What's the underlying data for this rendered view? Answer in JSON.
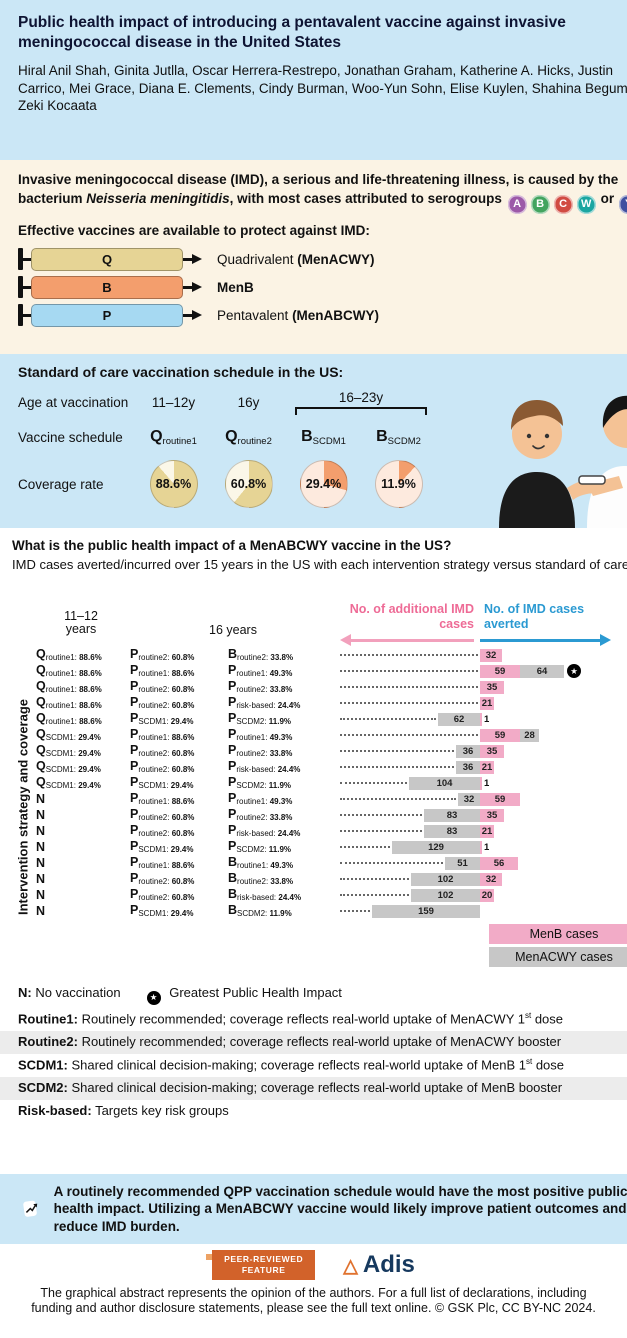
{
  "colors": {
    "header_bg": "#cbe7f6",
    "cream_bg": "#fbf3e4",
    "pink": "#f2abc7",
    "pink_arrow": "#f2a0bc",
    "pink_text": "#ee6b96",
    "blue_text": "#2b9ad2",
    "gray": "#c7c7c7",
    "khaki": "#e6d495",
    "orange": "#f39e6d",
    "syringe_blue": "#a6d9f2",
    "badge_orange": "#d2622a",
    "adis_navy": "#16395e",
    "shade": "#ececec"
  },
  "header": {
    "title": "Public health impact of introducing a pentavalent vaccine against invasive meningococcal disease in the United States",
    "authors": "Hiral Anil Shah, Ginita Jutlla, Oscar Herrera-Restrepo, Jonathan Graham, Katherine A. Hicks, Justin Carrico, Mei Grace, Diana E. Clements, Cindy Burman, Woo-Yun Sohn, Elise Kuylen, Shahina Begum, Zeki Kocaata"
  },
  "intro": {
    "text_before_italic": "Invasive meningococcal disease (IMD), a serious and life-threatening illness, is caused by the bacterium ",
    "italic": "Neisseria meningitidis",
    "text_after_italic": ", with most cases attributed to serogroups ",
    "serogroups": [
      {
        "letter": "A",
        "color": "#9c59a8"
      },
      {
        "letter": "B",
        "color": "#43a45f"
      },
      {
        "letter": "C",
        "color": "#d14b42"
      },
      {
        "letter": "W",
        "color": "#1ba6a1"
      },
      {
        "letter": "Y",
        "color": "#3f4fa0"
      }
    ],
    "or_label": "or",
    "vaccines_heading": "Effective vaccines are available to protect against IMD:",
    "syringes": [
      {
        "letter": "Q",
        "color": "#e6d495",
        "label": "Quadrivalent ",
        "label_bold": "(MenACWY)"
      },
      {
        "letter": "B",
        "color": "#f39e6d",
        "label": "",
        "label_bold": "MenB"
      },
      {
        "letter": "P",
        "color": "#a6d9f2",
        "label": "Pentavalent ",
        "label_bold": "(MenABCWY)"
      }
    ]
  },
  "schedule": {
    "heading": "Standard of care vaccination schedule in the US:",
    "row_age_label": "Age at vaccination",
    "ages": [
      "11–12y",
      "16y",
      "16–23y"
    ],
    "row_schedule_label": "Vaccine schedule",
    "doses": [
      {
        "letter": "Q",
        "sub": "routine1"
      },
      {
        "letter": "Q",
        "sub": "routine2"
      },
      {
        "letter": "B",
        "sub": "SCDM1"
      },
      {
        "letter": "B",
        "sub": "SCDM2"
      }
    ],
    "row_coverage_label": "Coverage rate",
    "coverage": [
      {
        "value": 88.6,
        "label": "88.6%",
        "color": "#e6d495",
        "rest": "#fbf7e8"
      },
      {
        "value": 60.8,
        "label": "60.8%",
        "color": "#e6d495",
        "rest": "#fbf7e8"
      },
      {
        "value": 29.4,
        "label": "29.4%",
        "color": "#f39e6d",
        "rest": "#fdeade"
      },
      {
        "value": 11.9,
        "label": "11.9%",
        "color": "#f39e6d",
        "rest": "#fdeade"
      }
    ]
  },
  "chart_section": {
    "heading": "What is the public health impact of a MenABCWY vaccine in the US?",
    "subheading": "IMD cases averted/incurred over 15 years in the US with each intervention strategy versus standard of care:",
    "left_arrow_label": "No. of additional IMD cases",
    "right_arrow_label": "No. of IMD cases averted",
    "y_axis_label": "Intervention strategy and coverage",
    "col_headers": [
      "11–12 years",
      "16 years"
    ]
  },
  "chart_data": {
    "type": "bar",
    "orientation": "horizontal-diverging",
    "title": "IMD cases averted/incurred over 15 years vs standard of care",
    "axis": {
      "left": "No. of additional IMD cases",
      "right": "No. of IMD cases averted"
    },
    "series_legend": [
      {
        "name": "MenB cases",
        "color": "pink"
      },
      {
        "name": "MenACWY cases",
        "color": "gray"
      }
    ],
    "rows": [
      {
        "s1112": {
          "letter": "Q",
          "sub": "routine1",
          "cov": "88.6%"
        },
        "s16": {
          "letter": "P",
          "sub": "routine2",
          "cov": "60.8%"
        },
        "s1623": {
          "letter": "B",
          "sub": "routine2",
          "cov": "33.8%"
        },
        "menb_averted": 32,
        "menacwy_change": 0,
        "star": false
      },
      {
        "s1112": {
          "letter": "Q",
          "sub": "routine1",
          "cov": "88.6%"
        },
        "s16": {
          "letter": "P",
          "sub": "routine1",
          "cov": "88.6%"
        },
        "s1623": {
          "letter": "P",
          "sub": "routine1",
          "cov": "49.3%"
        },
        "menb_averted": 59,
        "menacwy_change": 64,
        "star": true
      },
      {
        "s1112": {
          "letter": "Q",
          "sub": "routine1",
          "cov": "88.6%"
        },
        "s16": {
          "letter": "P",
          "sub": "routine2",
          "cov": "60.8%"
        },
        "s1623": {
          "letter": "P",
          "sub": "routine2",
          "cov": "33.8%"
        },
        "menb_averted": 35,
        "menacwy_change": 0,
        "star": false
      },
      {
        "s1112": {
          "letter": "Q",
          "sub": "routine1",
          "cov": "88.6%"
        },
        "s16": {
          "letter": "P",
          "sub": "routine2",
          "cov": "60.8%"
        },
        "s1623": {
          "letter": "P",
          "sub": "risk-based",
          "cov": "24.4%"
        },
        "menb_averted": 21,
        "menacwy_change": 0,
        "star": false
      },
      {
        "s1112": {
          "letter": "Q",
          "sub": "routine1",
          "cov": "88.6%"
        },
        "s16": {
          "letter": "P",
          "sub": "SCDM1",
          "cov": "29.4%"
        },
        "s1623": {
          "letter": "P",
          "sub": "SCDM2",
          "cov": "11.9%"
        },
        "menb_averted": 1,
        "menacwy_change": -62,
        "star": false
      },
      {
        "s1112": {
          "letter": "Q",
          "sub": "SCDM1",
          "cov": "29.4%"
        },
        "s16": {
          "letter": "P",
          "sub": "routine1",
          "cov": "88.6%"
        },
        "s1623": {
          "letter": "P",
          "sub": "routine1",
          "cov": "49.3%"
        },
        "menb_averted": 59,
        "menacwy_change": 28,
        "star": false
      },
      {
        "s1112": {
          "letter": "Q",
          "sub": "SCDM1",
          "cov": "29.4%"
        },
        "s16": {
          "letter": "P",
          "sub": "routine2",
          "cov": "60.8%"
        },
        "s1623": {
          "letter": "P",
          "sub": "routine2",
          "cov": "33.8%"
        },
        "menb_averted": 35,
        "menacwy_change": -36,
        "star": false
      },
      {
        "s1112": {
          "letter": "Q",
          "sub": "SCDM1",
          "cov": "29.4%"
        },
        "s16": {
          "letter": "P",
          "sub": "routine2",
          "cov": "60.8%"
        },
        "s1623": {
          "letter": "P",
          "sub": "risk-based",
          "cov": "24.4%"
        },
        "menb_averted": 21,
        "menacwy_change": -36,
        "star": false
      },
      {
        "s1112": {
          "letter": "Q",
          "sub": "SCDM1",
          "cov": "29.4%"
        },
        "s16": {
          "letter": "P",
          "sub": "SCDM1",
          "cov": "29.4%"
        },
        "s1623": {
          "letter": "P",
          "sub": "SCDM2",
          "cov": "11.9%"
        },
        "menb_averted": 1,
        "menacwy_change": -104,
        "star": false
      },
      {
        "s1112": {
          "letter": "N"
        },
        "s16": {
          "letter": "P",
          "sub": "routine1",
          "cov": "88.6%"
        },
        "s1623": {
          "letter": "P",
          "sub": "routine1",
          "cov": "49.3%"
        },
        "menb_averted": 59,
        "menacwy_change": -32,
        "star": false
      },
      {
        "s1112": {
          "letter": "N"
        },
        "s16": {
          "letter": "P",
          "sub": "routine2",
          "cov": "60.8%"
        },
        "s1623": {
          "letter": "P",
          "sub": "routine2",
          "cov": "33.8%"
        },
        "menb_averted": 35,
        "menacwy_change": -83,
        "star": false
      },
      {
        "s1112": {
          "letter": "N"
        },
        "s16": {
          "letter": "P",
          "sub": "routine2",
          "cov": "60.8%"
        },
        "s1623": {
          "letter": "P",
          "sub": "risk-based",
          "cov": "24.4%"
        },
        "menb_averted": 21,
        "menacwy_change": -83,
        "star": false
      },
      {
        "s1112": {
          "letter": "N"
        },
        "s16": {
          "letter": "P",
          "sub": "SCDM1",
          "cov": "29.4%"
        },
        "s1623": {
          "letter": "P",
          "sub": "SCDM2",
          "cov": "11.9%"
        },
        "menb_averted": 1,
        "menacwy_change": -129,
        "star": false
      },
      {
        "s1112": {
          "letter": "N"
        },
        "s16": {
          "letter": "P",
          "sub": "routine1",
          "cov": "88.6%"
        },
        "s1623": {
          "letter": "B",
          "sub": "routine1",
          "cov": "49.3%"
        },
        "menb_averted": 56,
        "menacwy_change": -51,
        "star": false
      },
      {
        "s1112": {
          "letter": "N"
        },
        "s16": {
          "letter": "P",
          "sub": "routine2",
          "cov": "60.8%"
        },
        "s1623": {
          "letter": "B",
          "sub": "routine2",
          "cov": "33.8%"
        },
        "menb_averted": 32,
        "menacwy_change": -102,
        "star": false
      },
      {
        "s1112": {
          "letter": "N"
        },
        "s16": {
          "letter": "P",
          "sub": "routine2",
          "cov": "60.8%"
        },
        "s1623": {
          "letter": "B",
          "sub": "risk-based",
          "cov": "24.4%"
        },
        "menb_averted": 20,
        "menacwy_change": -102,
        "star": false
      },
      {
        "s1112": {
          "letter": "N"
        },
        "s16": {
          "letter": "P",
          "sub": "SCDM1",
          "cov": "29.4%"
        },
        "s1623": {
          "letter": "B",
          "sub": "SCDM2",
          "cov": "11.9%"
        },
        "menb_averted": 0,
        "menacwy_change": -159,
        "star": false
      }
    ]
  },
  "footnotes": {
    "lines": [
      {
        "shaded": false,
        "parts": [
          {
            "b": "N:"
          },
          {
            "t": " No vaccination"
          },
          {
            "star": true
          },
          {
            "t": " Greatest Public Health Impact"
          }
        ]
      },
      {
        "shaded": false,
        "parts": [
          {
            "b": "Routine1:"
          },
          {
            "t": " Routinely recommended; coverage reflects real-world uptake of MenACWY 1"
          },
          {
            "sup": "st"
          },
          {
            "t": " dose"
          }
        ]
      },
      {
        "shaded": true,
        "parts": [
          {
            "b": "Routine2:"
          },
          {
            "t": " Routinely recommended; coverage reflects real-world uptake of MenACWY booster"
          }
        ]
      },
      {
        "shaded": false,
        "parts": [
          {
            "b": "SCDM1:"
          },
          {
            "t": " Shared clinical decision-making; coverage reflects real-world uptake of MenB 1"
          },
          {
            "sup": "st"
          },
          {
            "t": " dose"
          }
        ]
      },
      {
        "shaded": true,
        "parts": [
          {
            "b": "SCDM2:"
          },
          {
            "t": " Shared clinical decision-making; coverage reflects real-world uptake of MenB booster"
          }
        ]
      },
      {
        "shaded": false,
        "parts": [
          {
            "b": "Risk-based:"
          },
          {
            "t": " Targets key risk groups"
          }
        ]
      }
    ]
  },
  "conclusion": {
    "text": "A routinely recommended QPP vaccination schedule would have the most positive public health impact. Utilizing a MenABCWY vaccine would likely improve patient outcomes and reduce IMD burden."
  },
  "footer": {
    "badge_line1": "PEER-REVIEWED",
    "badge_line2": "FEATURE",
    "adis_triangle": "△",
    "adis_name": "Adis",
    "disclaimer": "The graphical abstract represents the opinion of the authors. For a full list of declarations, including funding and author disclosure statements, please see the full text online. © GSK Plc, CC BY-NC 2024."
  }
}
